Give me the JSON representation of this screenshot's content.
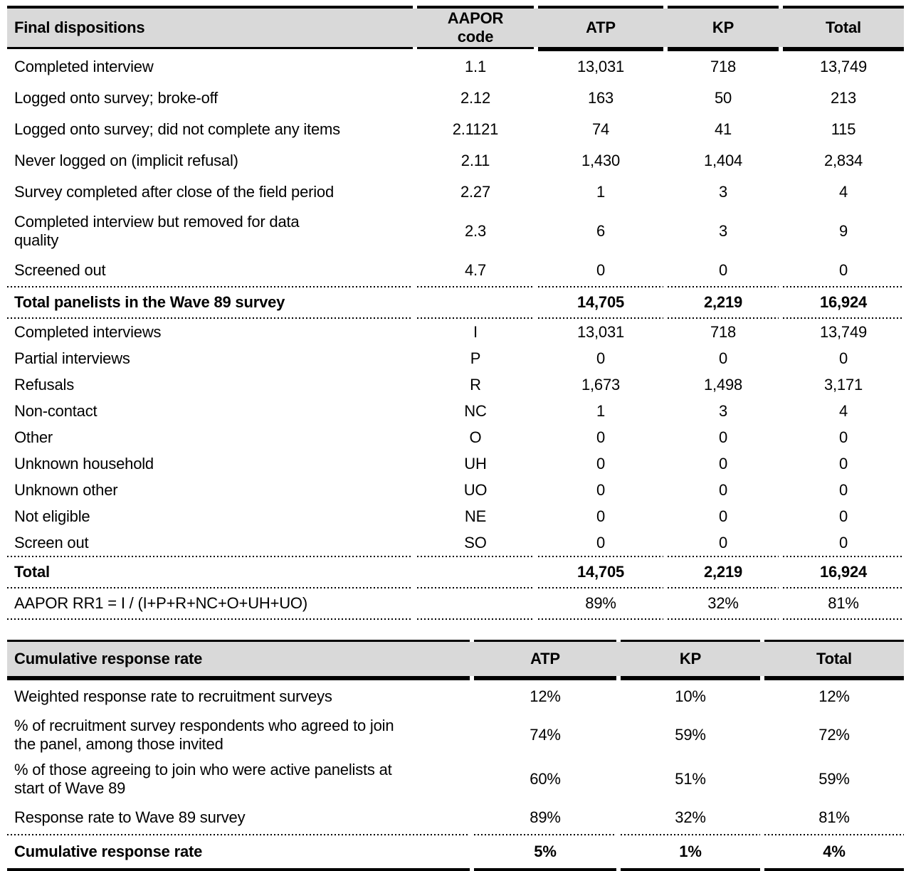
{
  "colors": {
    "header_bg": "#d9d9d9",
    "text": "#000000",
    "rule": "#000000"
  },
  "dispositions_table": {
    "header": {
      "label": "Final dispositions",
      "code": "AAPOR\ncode",
      "atp": "ATP",
      "kp": "KP",
      "total": "Total"
    },
    "rows": [
      {
        "label": "Completed interview",
        "code": "1.1",
        "atp": "13,031",
        "kp": "718",
        "total": "13,749"
      },
      {
        "label": "Logged onto survey; broke-off",
        "code": "2.12",
        "atp": "163",
        "kp": "50",
        "total": "213"
      },
      {
        "label": "Logged onto survey; did not complete any items",
        "code": "2.1121",
        "atp": "74",
        "kp": "41",
        "total": "115"
      },
      {
        "label": "Never logged on (implicit refusal)",
        "code": "2.11",
        "atp": "1,430",
        "kp": "1,404",
        "total": "2,834"
      },
      {
        "label": "Survey completed after close of the field period",
        "code": "2.27",
        "atp": "1",
        "kp": "3",
        "total": "4"
      },
      {
        "label": "Completed interview but removed for data\nquality",
        "code": "2.3",
        "atp": "6",
        "kp": "3",
        "total": "9"
      },
      {
        "label": "Screened out",
        "code": "4.7",
        "atp": "0",
        "kp": "0",
        "total": "0"
      }
    ],
    "total_panelists": {
      "label": "Total panelists in the Wave 89 survey",
      "code": "",
      "atp": "14,705",
      "kp": "2,219",
      "total": "16,924"
    },
    "aapor_rows": [
      {
        "label": "Completed interviews",
        "code": "I",
        "atp": "13,031",
        "kp": "718",
        "total": "13,749"
      },
      {
        "label": "Partial interviews",
        "code": "P",
        "atp": "0",
        "kp": "0",
        "total": "0"
      },
      {
        "label": "Refusals",
        "code": "R",
        "atp": "1,673",
        "kp": "1,498",
        "total": "3,171"
      },
      {
        "label": "Non-contact",
        "code": "NC",
        "atp": "1",
        "kp": "3",
        "total": "4"
      },
      {
        "label": "Other",
        "code": "O",
        "atp": "0",
        "kp": "0",
        "total": "0"
      },
      {
        "label": "Unknown household",
        "code": "UH",
        "atp": "0",
        "kp": "0",
        "total": "0"
      },
      {
        "label": "Unknown other",
        "code": "UO",
        "atp": "0",
        "kp": "0",
        "total": "0"
      },
      {
        "label": "Not eligible",
        "code": "NE",
        "atp": "0",
        "kp": "0",
        "total": "0"
      },
      {
        "label": "Screen out",
        "code": "SO",
        "atp": "0",
        "kp": "0",
        "total": "0"
      }
    ],
    "grand_total": {
      "label": "Total",
      "code": "",
      "atp": "14,705",
      "kp": "2,219",
      "total": "16,924"
    },
    "rr1": {
      "label": "AAPOR RR1 = I / (I+P+R+NC+O+UH+UO)",
      "code": "",
      "atp": "89%",
      "kp": "32%",
      "total": "81%"
    }
  },
  "cumulative_table": {
    "header": {
      "label": "Cumulative response rate",
      "atp": "ATP",
      "kp": "KP",
      "total": "Total"
    },
    "rows": [
      {
        "label": "Weighted response rate to recruitment surveys",
        "atp": "12%",
        "kp": "10%",
        "total": "12%"
      },
      {
        "label": "% of recruitment survey respondents who agreed to join\nthe panel, among those invited",
        "atp": "74%",
        "kp": "59%",
        "total": "72%"
      },
      {
        "label": "% of those agreeing to join who were active panelists at\nstart of Wave 89",
        "atp": "60%",
        "kp": "51%",
        "total": "59%"
      },
      {
        "label": "Response rate to Wave 89 survey",
        "atp": "89%",
        "kp": "32%",
        "total": "81%"
      }
    ],
    "cumulative": {
      "label": "Cumulative response rate",
      "atp": "5%",
      "kp": "1%",
      "total": "4%"
    }
  }
}
